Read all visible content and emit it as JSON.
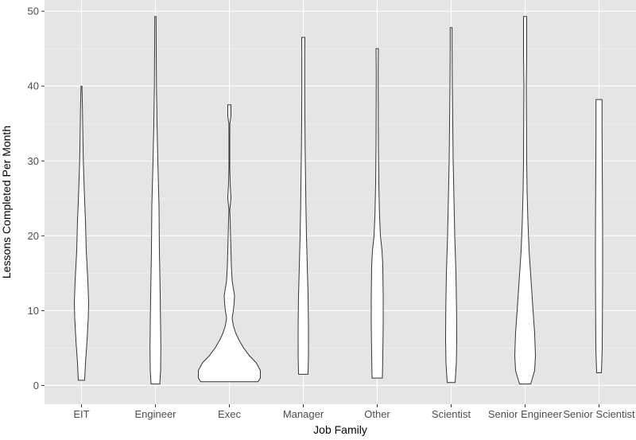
{
  "chart_data": {
    "type": "violin",
    "xlabel": "Job Family",
    "ylabel": "Lessons Completed Per Month",
    "ylim": [
      -2.5,
      51.5
    ],
    "y_ticks": [
      0,
      10,
      20,
      30,
      40,
      50
    ],
    "grid": true,
    "legend": "none",
    "colors": {
      "panel": "#e5e5e5",
      "grid_major": "#ffffff",
      "violin_fill": "#ffffff",
      "violin_stroke": "#333333"
    },
    "categories": [
      "EIT",
      "Engineer",
      "Exec",
      "Manager",
      "Other",
      "Scientist",
      "Senior Engineer",
      "Senior Scientist"
    ],
    "series": [
      {
        "category": "EIT",
        "min": 0.7,
        "max": 40.0,
        "profile": [
          [
            0.7,
            4
          ],
          [
            3,
            5
          ],
          [
            6,
            7
          ],
          [
            9,
            8.5
          ],
          [
            11,
            9
          ],
          [
            14,
            8
          ],
          [
            18,
            6
          ],
          [
            22,
            5
          ],
          [
            26,
            3.5
          ],
          [
            30,
            2.3
          ],
          [
            34,
            1.6
          ],
          [
            37,
            1.2
          ],
          [
            39,
            0.8
          ],
          [
            40,
            0.6
          ]
        ]
      },
      {
        "category": "Engineer",
        "min": 0.2,
        "max": 49.3,
        "profile": [
          [
            0.2,
            5.5
          ],
          [
            2,
            6.5
          ],
          [
            5,
            6.8
          ],
          [
            8,
            6.5
          ],
          [
            12,
            6
          ],
          [
            18,
            5
          ],
          [
            24,
            4.5
          ],
          [
            30,
            3
          ],
          [
            35,
            2
          ],
          [
            40,
            1.3
          ],
          [
            45,
            1
          ],
          [
            49.3,
            0.8
          ]
        ]
      },
      {
        "category": "Exec",
        "min": 0.5,
        "max": 37.5,
        "profile": [
          [
            0.5,
            36
          ],
          [
            1,
            39
          ],
          [
            2,
            39
          ],
          [
            3,
            34
          ],
          [
            4,
            25
          ],
          [
            5,
            18
          ],
          [
            6,
            12.5
          ],
          [
            7,
            8
          ],
          [
            8,
            5
          ],
          [
            9,
            3.5
          ],
          [
            10,
            5
          ],
          [
            11,
            6
          ],
          [
            12,
            6.5
          ],
          [
            13,
            5
          ],
          [
            14,
            3.5
          ],
          [
            16,
            2.5
          ],
          [
            18,
            2
          ],
          [
            20,
            1.5
          ],
          [
            22,
            1
          ],
          [
            23.5,
            0.5
          ],
          [
            25,
            2
          ],
          [
            26,
            1.5
          ],
          [
            27,
            1
          ],
          [
            29,
            0.5
          ],
          [
            33,
            0.5
          ],
          [
            35,
            0.6
          ],
          [
            36,
            2
          ],
          [
            37.5,
            2
          ]
        ]
      },
      {
        "category": "Manager",
        "min": 1.5,
        "max": 46.5,
        "profile": [
          [
            1.5,
            6
          ],
          [
            4,
            6.5
          ],
          [
            8,
            6.5
          ],
          [
            12,
            6
          ],
          [
            16,
            5
          ],
          [
            20,
            4
          ],
          [
            24,
            3.3
          ],
          [
            28,
            2.8
          ],
          [
            32,
            2.3
          ],
          [
            36,
            2
          ],
          [
            40,
            1.8
          ],
          [
            44,
            1.8
          ],
          [
            46.5,
            2
          ]
        ]
      },
      {
        "category": "Other",
        "min": 1.0,
        "max": 45.0,
        "profile": [
          [
            1,
            6.5
          ],
          [
            4,
            7
          ],
          [
            8,
            7.5
          ],
          [
            12,
            7.5
          ],
          [
            16,
            7
          ],
          [
            18,
            6
          ],
          [
            20,
            4
          ],
          [
            23,
            2.8
          ],
          [
            27,
            2
          ],
          [
            32,
            1.5
          ],
          [
            38,
            1.3
          ],
          [
            42,
            1.2
          ],
          [
            45,
            1.5
          ]
        ]
      },
      {
        "category": "Scientist",
        "min": 0.4,
        "max": 47.8,
        "profile": [
          [
            0.4,
            5
          ],
          [
            3,
            6.5
          ],
          [
            6,
            7
          ],
          [
            10,
            6.8
          ],
          [
            15,
            6
          ],
          [
            20,
            4.5
          ],
          [
            25,
            3.5
          ],
          [
            30,
            2.5
          ],
          [
            35,
            2
          ],
          [
            40,
            1.5
          ],
          [
            45,
            1.2
          ],
          [
            47.8,
            1.2
          ]
        ]
      },
      {
        "category": "Senior Engineer",
        "min": 0.2,
        "max": 49.3,
        "profile": [
          [
            0.2,
            7
          ],
          [
            2,
            12
          ],
          [
            4,
            13
          ],
          [
            7,
            12
          ],
          [
            10,
            10
          ],
          [
            14,
            7.5
          ],
          [
            18,
            5
          ],
          [
            22,
            3.5
          ],
          [
            26,
            2.5
          ],
          [
            30,
            2
          ],
          [
            35,
            1.8
          ],
          [
            40,
            1.5
          ],
          [
            44,
            2
          ],
          [
            49.3,
            2
          ]
        ]
      },
      {
        "category": "Senior Scientist",
        "min": 1.7,
        "max": 38.2,
        "profile": [
          [
            1.7,
            3
          ],
          [
            5,
            4
          ],
          [
            10,
            4.3
          ],
          [
            15,
            4.5
          ],
          [
            20,
            4.5
          ],
          [
            25,
            4.3
          ],
          [
            30,
            4
          ],
          [
            34,
            3.8
          ],
          [
            36,
            3.8
          ],
          [
            38.2,
            3.8
          ]
        ]
      }
    ]
  }
}
